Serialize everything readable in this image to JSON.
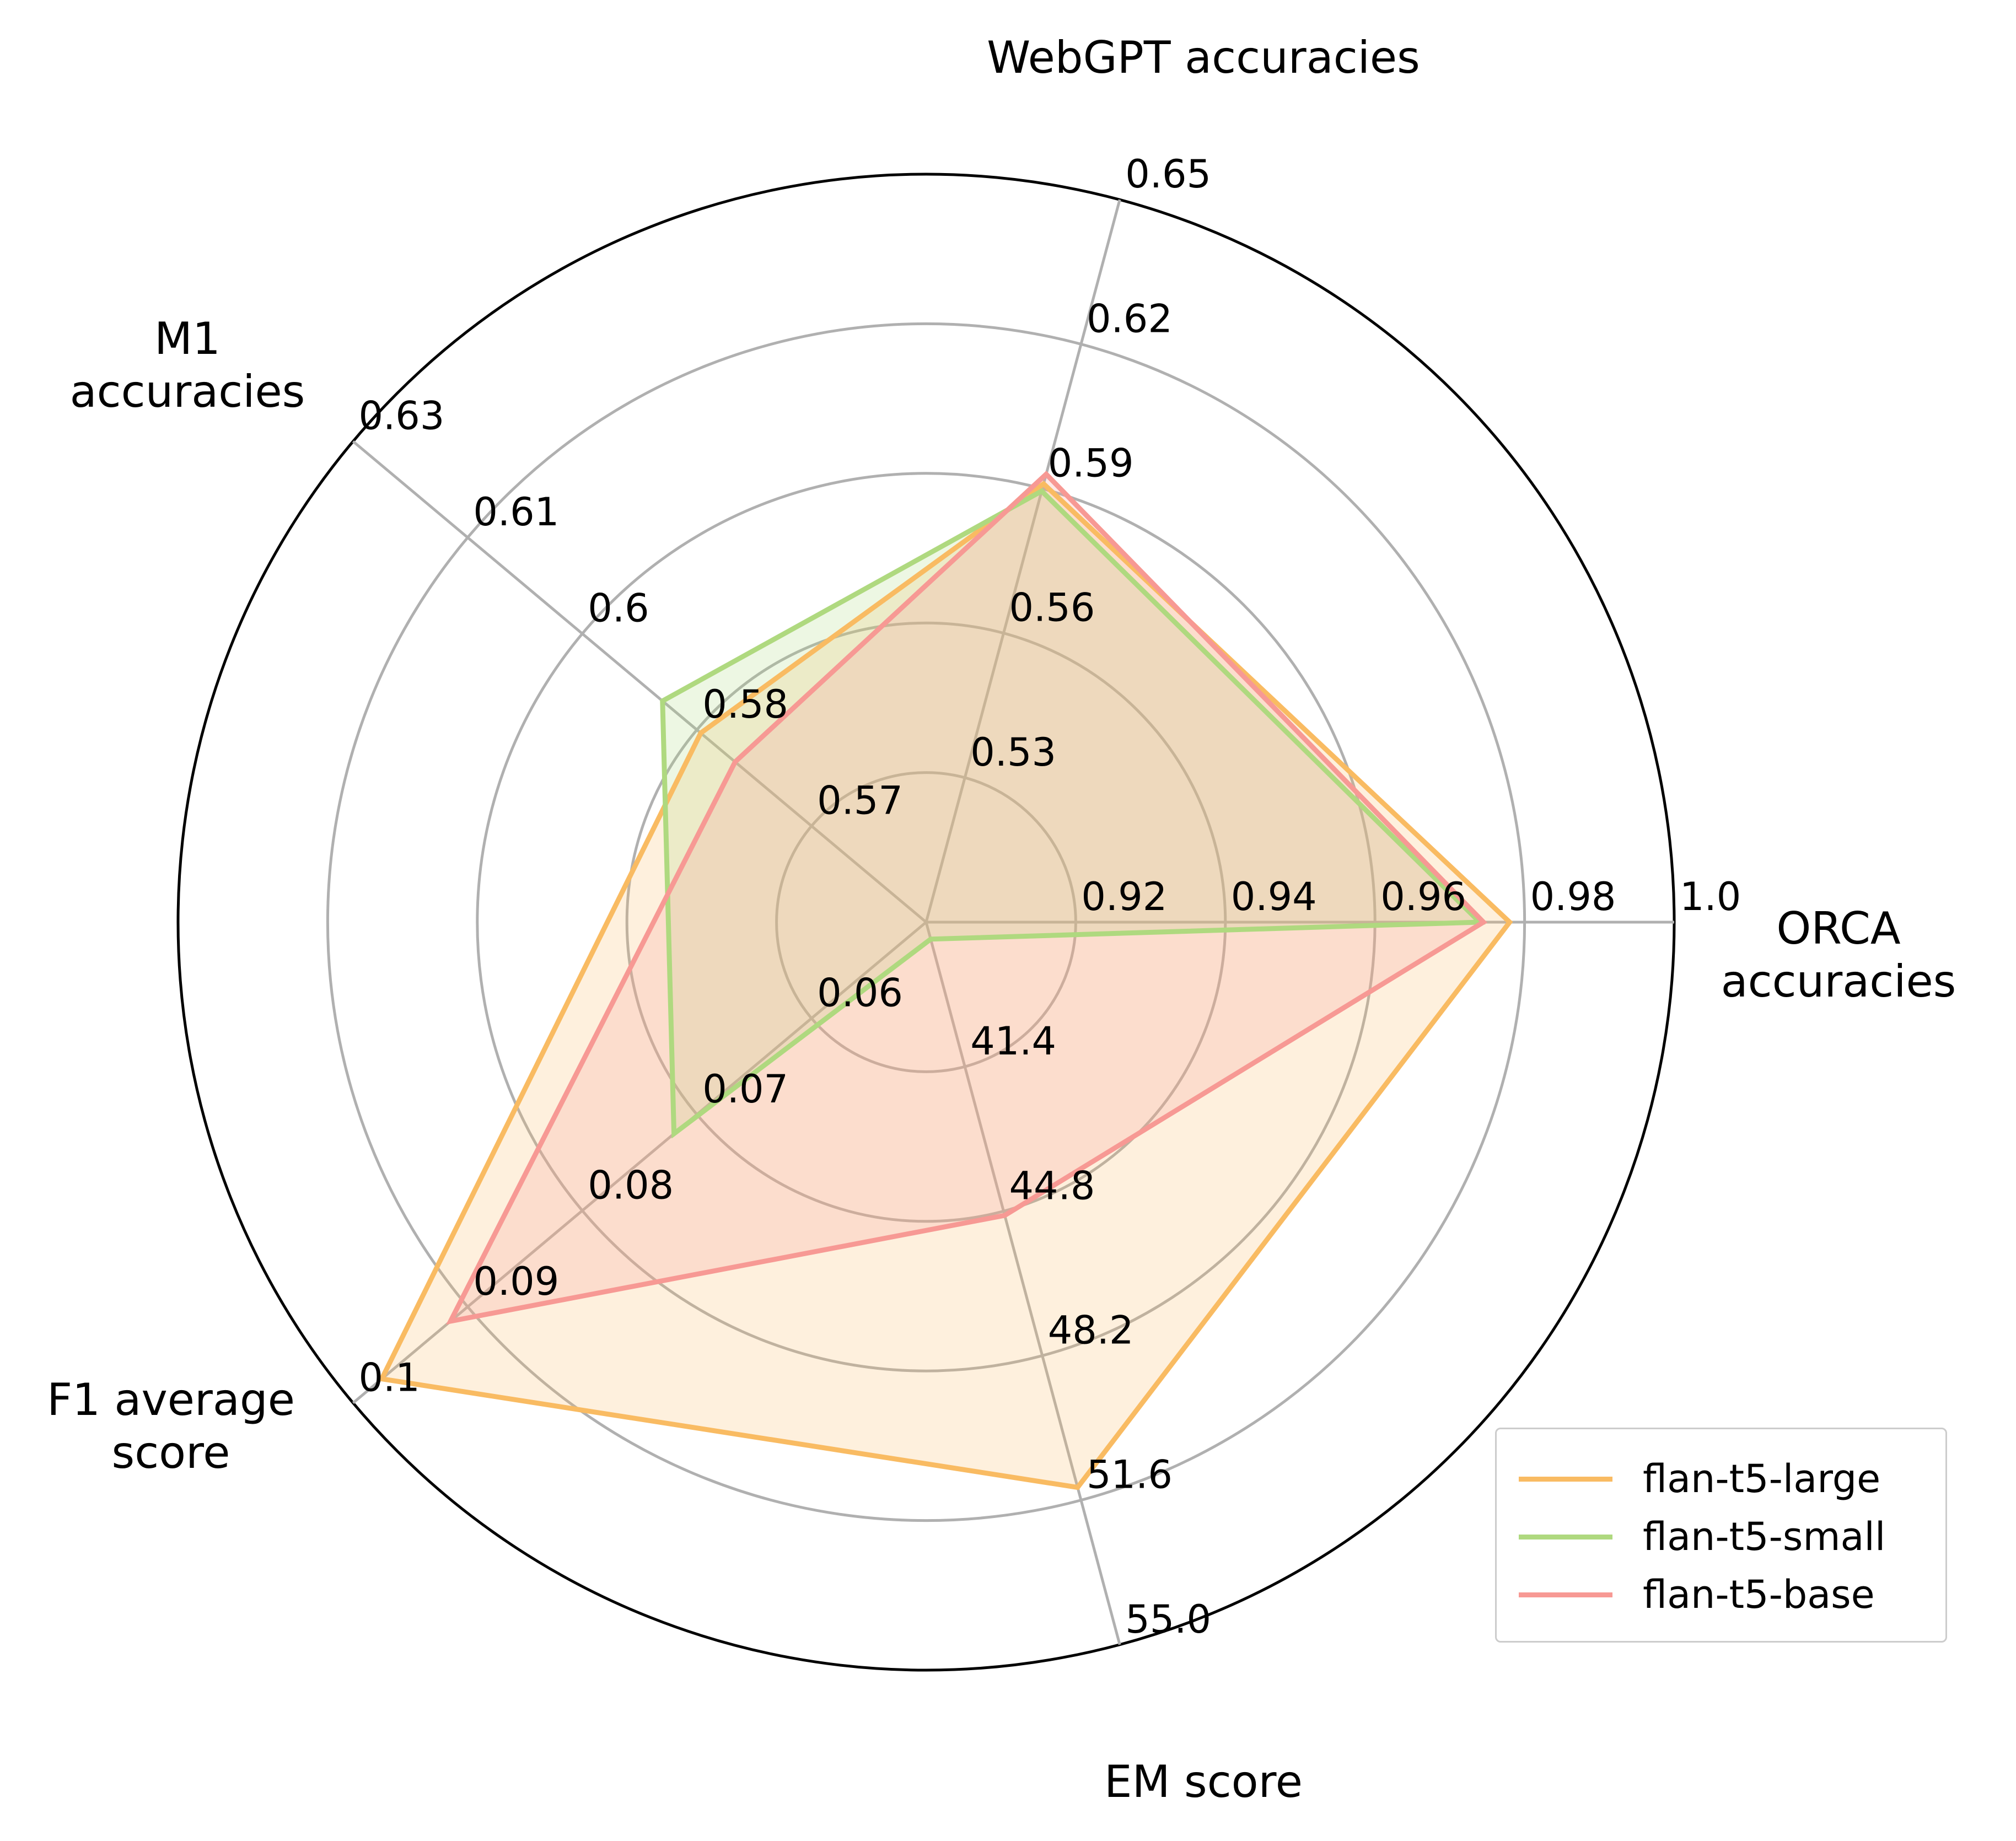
{
  "chart_data": {
    "type": "radar",
    "axes": [
      {
        "label": "ORCA\naccuracies",
        "ticks": [
          "0.92",
          "0.94",
          "0.96",
          "0.98",
          "1.0"
        ],
        "range": [
          0.9,
          1.0
        ]
      },
      {
        "label": "WebGPT accuracies",
        "ticks": [
          "0.53",
          "0.56",
          "0.59",
          "0.62",
          "0.65"
        ],
        "range": [
          0.5,
          0.65
        ]
      },
      {
        "label": "M1\naccuracies",
        "ticks": [
          "0.57",
          "0.58",
          "0.6",
          "0.61",
          "0.63"
        ],
        "range": [
          0.555,
          0.63
        ]
      },
      {
        "label": "F1 average\nscore",
        "ticks": [
          "0.06",
          "0.07",
          "0.08",
          "0.09",
          "0.1"
        ],
        "range": [
          0.05,
          0.1
        ]
      },
      {
        "label": "EM score",
        "ticks": [
          "41.4",
          "44.8",
          "48.2",
          "51.6",
          "55.0"
        ],
        "range": [
          38.0,
          55.0
        ]
      }
    ],
    "series": [
      {
        "name": "flan-t5-large",
        "color": "#f9bb62",
        "values": [
          0.978,
          0.591,
          0.5845,
          0.0975,
          51.3
        ]
      },
      {
        "name": "flan-t5-small",
        "color": "#afd97f",
        "values": [
          0.974,
          0.5895,
          0.5895,
          0.072,
          38.4
        ]
      },
      {
        "name": "flan-t5-base",
        "color": "#f79994",
        "values": [
          0.9745,
          0.593,
          0.58,
          0.0915,
          44.9
        ]
      }
    ],
    "grid": true,
    "legend_position": "bottom-right"
  }
}
